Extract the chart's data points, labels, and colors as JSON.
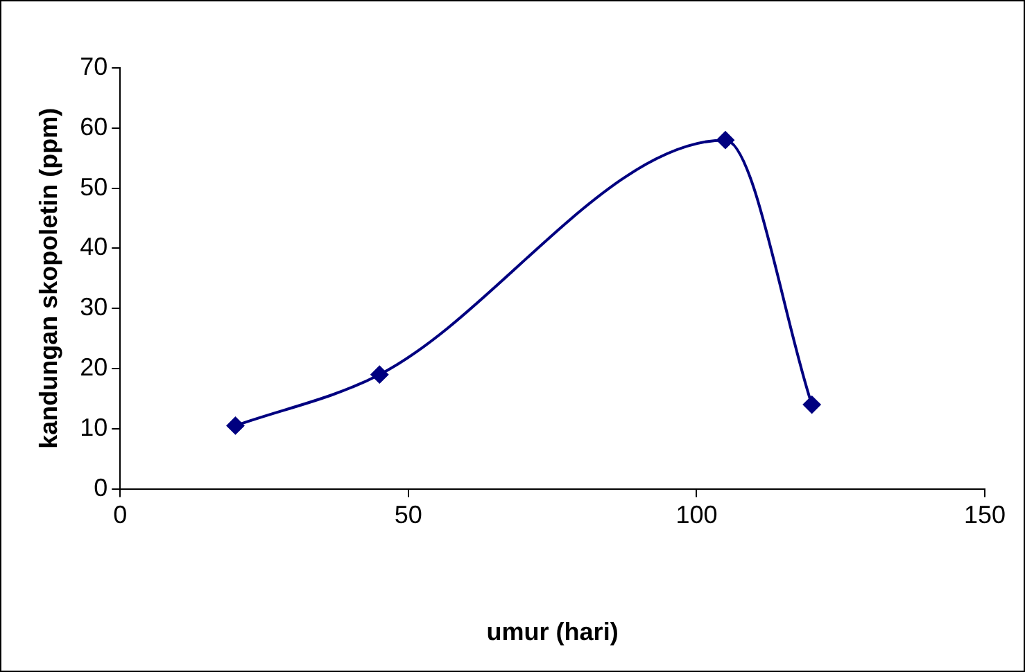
{
  "chart_data": {
    "type": "line",
    "xlabel": "umur (hari)",
    "ylabel": "kandungan skopoletin (ppm)",
    "x": [
      20,
      45,
      105,
      120
    ],
    "series": [
      {
        "color": "#000080",
        "values": [
          10.5,
          19,
          58,
          14
        ]
      }
    ],
    "xlim": [
      0,
      150
    ],
    "xticks": [
      0,
      50,
      100,
      150
    ],
    "ylim": [
      0,
      70
    ],
    "yticks": [
      0,
      10,
      20,
      30,
      40,
      50,
      60,
      70
    ],
    "grid": false,
    "legend": false,
    "marker": "diamond",
    "line_style": "solid"
  }
}
